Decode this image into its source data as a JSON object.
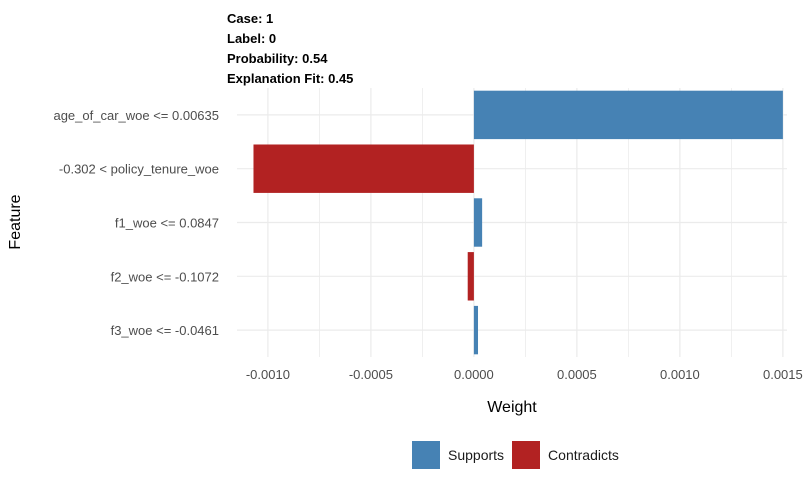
{
  "header": {
    "case": "Case: 1",
    "label": "Label: 0",
    "probability": "Probability: 0.54",
    "fit": "Explanation Fit: 0.45"
  },
  "colors": {
    "supports": "#4682b4",
    "contradicts": "#b22222",
    "grid": "#ebebeb"
  },
  "chart_data": {
    "type": "bar",
    "orientation": "horizontal",
    "xlabel": "Weight",
    "ylabel": "Feature",
    "xlim": [
      -0.00115,
      0.00152
    ],
    "x_ticks": [
      -0.001,
      -0.0005,
      0.0,
      0.0005,
      0.001,
      0.0015
    ],
    "x_tick_labels": [
      "-0.0010",
      "-0.0005",
      "0.0000",
      "0.0005",
      "0.0010",
      "0.0015"
    ],
    "grid": true,
    "legend_position": "bottom",
    "categories": [
      "age_of_car_woe <= 0.00635",
      "-0.302 < policy_tenure_woe",
      "f1_woe <= 0.0847",
      "f2_woe <= -0.1072",
      "f3_woe <= -0.0461"
    ],
    "values": [
      0.0015,
      -0.00107,
      4e-05,
      -3e-05,
      2e-05
    ],
    "series": [
      {
        "name": "Supports",
        "color": "#4682b4"
      },
      {
        "name": "Contradicts",
        "color": "#b22222"
      }
    ]
  }
}
